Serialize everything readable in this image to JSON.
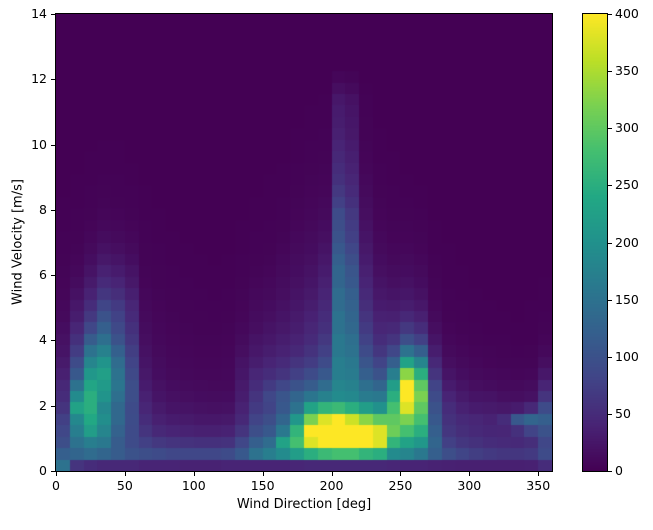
{
  "chart_data": {
    "type": "heatmap",
    "title": "",
    "xlabel": "Wind Direction [deg]",
    "ylabel": "Wind Velocity [m/s]",
    "x_range": [
      0,
      360
    ],
    "y_range": [
      0,
      14
    ],
    "x_ticks": [
      0,
      50,
      100,
      150,
      200,
      250,
      300,
      350
    ],
    "y_ticks": [
      0,
      2,
      4,
      6,
      8,
      10,
      12,
      14
    ],
    "x_bin_deg": 10,
    "y_bin_ms": 0.35,
    "grid": false,
    "colormap": "viridis",
    "colormap_stops": [
      "#440154",
      "#482475",
      "#414487",
      "#355f8d",
      "#2a788e",
      "#21918c",
      "#22a884",
      "#44bf70",
      "#7ad151",
      "#bddf26",
      "#fde725"
    ],
    "colorbar": {
      "min": 0,
      "max": 400,
      "ticks": [
        0,
        50,
        100,
        150,
        200,
        250,
        300,
        350,
        400
      ]
    },
    "values_rows_bottom_to_top": [
      [
        150,
        60,
        50,
        45,
        45,
        45,
        40,
        40,
        40,
        38,
        38,
        38,
        40,
        40,
        40,
        40,
        40,
        42,
        45,
        45,
        45,
        45,
        45,
        45,
        42,
        40,
        40,
        38,
        36,
        35,
        35,
        35,
        35,
        35,
        36,
        50
      ],
      [
        120,
        130,
        140,
        130,
        115,
        100,
        95,
        90,
        85,
        85,
        85,
        85,
        90,
        110,
        150,
        170,
        190,
        220,
        250,
        270,
        280,
        280,
        260,
        250,
        190,
        180,
        160,
        120,
        95,
        82,
        72,
        66,
        62,
        62,
        66,
        90
      ],
      [
        95,
        150,
        170,
        160,
        115,
        90,
        75,
        65,
        60,
        58,
        55,
        55,
        58,
        85,
        120,
        140,
        230,
        280,
        380,
        400,
        400,
        400,
        400,
        380,
        260,
        230,
        210,
        130,
        75,
        62,
        56,
        50,
        48,
        46,
        52,
        85
      ],
      [
        85,
        170,
        220,
        180,
        125,
        90,
        60,
        45,
        40,
        38,
        35,
        35,
        38,
        60,
        95,
        110,
        160,
        260,
        400,
        400,
        400,
        400,
        400,
        380,
        310,
        280,
        250,
        120,
        62,
        52,
        46,
        43,
        42,
        55,
        80,
        100
      ],
      [
        75,
        185,
        240,
        195,
        135,
        92,
        50,
        35,
        30,
        28,
        25,
        25,
        27,
        45,
        80,
        95,
        130,
        210,
        320,
        380,
        400,
        370,
        330,
        300,
        300,
        320,
        280,
        110,
        56,
        46,
        42,
        38,
        50,
        110,
        130,
        120
      ],
      [
        60,
        230,
        250,
        185,
        135,
        90,
        42,
        28,
        22,
        20,
        18,
        17,
        18,
        38,
        68,
        80,
        110,
        150,
        230,
        260,
        270,
        250,
        220,
        200,
        280,
        380,
        300,
        100,
        50,
        36,
        30,
        28,
        26,
        30,
        45,
        90
      ],
      [
        50,
        190,
        250,
        205,
        145,
        95,
        36,
        22,
        17,
        15,
        13,
        12,
        13,
        32,
        60,
        85,
        105,
        130,
        155,
        175,
        190,
        185,
        165,
        160,
        250,
        400,
        320,
        90,
        40,
        28,
        22,
        20,
        16,
        15,
        18,
        60
      ],
      [
        45,
        150,
        235,
        215,
        155,
        95,
        30,
        18,
        13,
        11,
        10,
        9,
        9,
        28,
        50,
        68,
        85,
        100,
        115,
        140,
        180,
        175,
        145,
        130,
        220,
        400,
        300,
        80,
        30,
        20,
        15,
        12,
        10,
        10,
        12,
        40
      ],
      [
        35,
        110,
        210,
        225,
        150,
        88,
        26,
        14,
        10,
        8,
        7,
        7,
        8,
        24,
        42,
        50,
        60,
        75,
        90,
        110,
        170,
        165,
        120,
        100,
        170,
        330,
        250,
        60,
        22,
        14,
        10,
        8,
        7,
        6,
        7,
        25
      ],
      [
        28,
        90,
        180,
        205,
        140,
        80,
        22,
        12,
        8,
        7,
        6,
        6,
        7,
        20,
        32,
        40,
        48,
        60,
        70,
        90,
        170,
        160,
        105,
        80,
        120,
        230,
        180,
        45,
        15,
        10,
        7,
        5,
        4,
        4,
        4,
        15
      ],
      [
        22,
        70,
        150,
        175,
        122,
        72,
        18,
        10,
        7,
        6,
        5,
        5,
        6,
        15,
        25,
        32,
        38,
        45,
        58,
        75,
        160,
        150,
        90,
        62,
        85,
        150,
        120,
        32,
        10,
        7,
        5,
        4,
        3,
        2,
        3,
        8
      ],
      [
        18,
        55,
        115,
        145,
        100,
        62,
        15,
        8,
        6,
        5,
        4,
        4,
        5,
        11,
        20,
        25,
        32,
        38,
        48,
        65,
        160,
        145,
        78,
        50,
        60,
        95,
        75,
        22,
        7,
        5,
        3,
        2,
        2,
        1,
        1,
        5
      ],
      [
        14,
        42,
        85,
        120,
        88,
        55,
        12,
        7,
        5,
        4,
        3,
        3,
        4,
        8,
        15,
        20,
        26,
        32,
        42,
        55,
        150,
        135,
        68,
        42,
        45,
        65,
        50,
        15,
        5,
        3,
        2,
        1,
        1,
        1,
        1,
        3
      ],
      [
        10,
        32,
        65,
        100,
        78,
        48,
        10,
        6,
        4,
        3,
        3,
        2,
        3,
        6,
        12,
        16,
        22,
        28,
        37,
        50,
        150,
        130,
        60,
        36,
        35,
        45,
        35,
        10,
        3,
        2,
        1,
        1,
        1,
        0,
        1,
        2
      ],
      [
        8,
        25,
        50,
        82,
        68,
        42,
        8,
        5,
        3,
        3,
        2,
        2,
        2,
        5,
        10,
        13,
        18,
        24,
        32,
        45,
        140,
        125,
        52,
        30,
        28,
        32,
        25,
        7,
        2,
        2,
        1,
        1,
        0,
        0,
        1,
        1
      ],
      [
        6,
        18,
        38,
        62,
        52,
        34,
        7,
        4,
        3,
        2,
        2,
        1,
        2,
        4,
        8,
        10,
        15,
        20,
        27,
        40,
        140,
        120,
        46,
        25,
        22,
        24,
        18,
        5,
        2,
        1,
        1,
        0,
        0,
        0,
        0,
        1
      ],
      [
        5,
        12,
        28,
        48,
        40,
        26,
        5,
        3,
        2,
        2,
        1,
        1,
        1,
        3,
        6,
        8,
        12,
        17,
        23,
        35,
        130,
        110,
        40,
        20,
        16,
        18,
        13,
        4,
        1,
        1,
        0,
        0,
        0,
        0,
        0,
        1
      ],
      [
        4,
        8,
        20,
        36,
        30,
        20,
        4,
        3,
        2,
        1,
        1,
        1,
        1,
        2,
        4,
        6,
        10,
        14,
        19,
        30,
        130,
        105,
        35,
        16,
        12,
        13,
        10,
        3,
        1,
        1,
        0,
        0,
        0,
        0,
        0,
        0
      ],
      [
        3,
        6,
        14,
        26,
        22,
        14,
        3,
        2,
        1,
        1,
        1,
        0,
        1,
        2,
        3,
        4,
        8,
        12,
        16,
        25,
        120,
        95,
        30,
        13,
        9,
        10,
        7,
        2,
        1,
        0,
        0,
        0,
        0,
        0,
        0,
        0
      ],
      [
        2,
        4,
        10,
        18,
        15,
        10,
        3,
        2,
        1,
        1,
        0,
        0,
        0,
        1,
        2,
        3,
        6,
        10,
        13,
        20,
        110,
        85,
        26,
        10,
        7,
        7,
        5,
        1,
        1,
        0,
        0,
        0,
        0,
        0,
        0,
        0
      ],
      [
        2,
        3,
        7,
        12,
        10,
        7,
        2,
        1,
        1,
        0,
        0,
        0,
        0,
        1,
        2,
        2,
        4,
        8,
        11,
        16,
        100,
        75,
        22,
        8,
        5,
        5,
        4,
        1,
        0,
        0,
        0,
        0,
        0,
        0,
        0,
        0
      ],
      [
        1,
        2,
        5,
        8,
        7,
        5,
        2,
        1,
        0,
        0,
        0,
        0,
        0,
        1,
        1,
        2,
        3,
        6,
        9,
        13,
        95,
        70,
        18,
        6,
        4,
        4,
        3,
        1,
        0,
        0,
        0,
        0,
        0,
        0,
        0,
        0
      ],
      [
        1,
        2,
        3,
        6,
        5,
        3,
        1,
        1,
        0,
        0,
        0,
        0,
        0,
        0,
        1,
        1,
        2,
        5,
        7,
        10,
        90,
        65,
        15,
        5,
        3,
        3,
        2,
        0,
        0,
        0,
        0,
        0,
        0,
        0,
        0,
        0
      ],
      [
        1,
        1,
        2,
        4,
        3,
        2,
        1,
        0,
        0,
        0,
        0,
        0,
        0,
        0,
        1,
        1,
        2,
        4,
        6,
        8,
        75,
        55,
        12,
        4,
        2,
        2,
        1,
        0,
        0,
        0,
        0,
        0,
        0,
        0,
        0,
        0
      ],
      [
        0,
        1,
        2,
        3,
        2,
        2,
        1,
        0,
        0,
        0,
        0,
        0,
        0,
        0,
        0,
        1,
        1,
        3,
        5,
        6,
        65,
        48,
        10,
        3,
        2,
        1,
        1,
        0,
        0,
        0,
        0,
        0,
        0,
        0,
        0,
        0
      ],
      [
        0,
        1,
        1,
        2,
        2,
        1,
        0,
        0,
        0,
        0,
        0,
        0,
        0,
        0,
        0,
        1,
        1,
        2,
        4,
        5,
        55,
        42,
        8,
        2,
        1,
        1,
        0,
        0,
        0,
        0,
        0,
        0,
        0,
        0,
        0,
        0
      ],
      [
        0,
        0,
        1,
        1,
        1,
        1,
        0,
        0,
        0,
        0,
        0,
        0,
        0,
        0,
        0,
        0,
        1,
        2,
        3,
        4,
        50,
        38,
        6,
        2,
        1,
        0,
        0,
        0,
        0,
        0,
        0,
        0,
        0,
        0,
        0,
        0
      ],
      [
        0,
        0,
        1,
        1,
        1,
        0,
        0,
        0,
        0,
        0,
        0,
        0,
        0,
        0,
        0,
        0,
        0,
        1,
        2,
        3,
        45,
        34,
        5,
        1,
        1,
        0,
        0,
        0,
        0,
        0,
        0,
        0,
        0,
        0,
        0,
        0
      ],
      [
        0,
        0,
        0,
        1,
        1,
        0,
        0,
        0,
        0,
        0,
        0,
        0,
        0,
        0,
        0,
        0,
        0,
        1,
        2,
        2,
        40,
        30,
        4,
        1,
        0,
        0,
        0,
        0,
        0,
        0,
        0,
        0,
        0,
        0,
        0,
        0
      ],
      [
        0,
        0,
        0,
        0,
        0,
        0,
        0,
        0,
        0,
        0,
        0,
        0,
        0,
        0,
        0,
        0,
        0,
        1,
        1,
        2,
        35,
        26,
        3,
        1,
        0,
        0,
        0,
        0,
        0,
        0,
        0,
        0,
        0,
        0,
        0,
        0
      ],
      [
        0,
        0,
        0,
        0,
        0,
        0,
        0,
        0,
        0,
        0,
        0,
        0,
        0,
        0,
        0,
        0,
        0,
        0,
        1,
        1,
        32,
        24,
        3,
        0,
        0,
        0,
        0,
        0,
        0,
        0,
        0,
        0,
        0,
        0,
        0,
        0
      ],
      [
        0,
        0,
        0,
        0,
        0,
        0,
        0,
        0,
        0,
        0,
        0,
        0,
        0,
        0,
        0,
        0,
        0,
        0,
        1,
        1,
        30,
        22,
        2,
        0,
        0,
        0,
        0,
        0,
        0,
        0,
        0,
        0,
        0,
        0,
        0,
        0
      ],
      [
        0,
        0,
        0,
        0,
        0,
        0,
        0,
        0,
        0,
        0,
        0,
        0,
        0,
        0,
        0,
        0,
        0,
        0,
        0,
        1,
        25,
        18,
        2,
        0,
        0,
        0,
        0,
        0,
        0,
        0,
        0,
        0,
        0,
        0,
        0,
        0
      ],
      [
        0,
        0,
        0,
        0,
        0,
        0,
        0,
        0,
        0,
        0,
        0,
        0,
        0,
        0,
        0,
        0,
        0,
        0,
        0,
        0,
        15,
        10,
        1,
        0,
        0,
        0,
        0,
        0,
        0,
        0,
        0,
        0,
        0,
        0,
        0,
        0
      ],
      [
        0,
        0,
        0,
        0,
        0,
        0,
        0,
        0,
        0,
        0,
        0,
        0,
        0,
        0,
        0,
        0,
        0,
        0,
        0,
        0,
        6,
        4,
        0,
        0,
        0,
        0,
        0,
        0,
        0,
        0,
        0,
        0,
        0,
        0,
        0,
        0
      ],
      [
        0,
        0,
        0,
        0,
        0,
        0,
        0,
        0,
        0,
        0,
        0,
        0,
        0,
        0,
        0,
        0,
        0,
        0,
        0,
        0,
        0,
        0,
        0,
        0,
        0,
        0,
        0,
        0,
        0,
        0,
        0,
        0,
        0,
        0,
        0,
        0
      ],
      [
        0,
        0,
        0,
        0,
        0,
        0,
        0,
        0,
        0,
        0,
        0,
        0,
        0,
        0,
        0,
        0,
        0,
        0,
        0,
        0,
        0,
        0,
        0,
        0,
        0,
        0,
        0,
        0,
        0,
        0,
        0,
        0,
        0,
        0,
        0,
        0
      ],
      [
        0,
        0,
        0,
        0,
        0,
        0,
        0,
        0,
        0,
        0,
        0,
        0,
        0,
        0,
        0,
        0,
        0,
        0,
        0,
        0,
        0,
        0,
        0,
        0,
        0,
        0,
        0,
        0,
        0,
        0,
        0,
        0,
        0,
        0,
        0,
        0
      ],
      [
        0,
        0,
        0,
        0,
        0,
        0,
        0,
        0,
        0,
        0,
        0,
        0,
        0,
        0,
        0,
        0,
        0,
        0,
        0,
        0,
        0,
        0,
        0,
        0,
        0,
        0,
        0,
        0,
        0,
        0,
        0,
        0,
        0,
        0,
        0,
        0
      ],
      [
        0,
        0,
        0,
        0,
        0,
        0,
        0,
        0,
        0,
        0,
        0,
        0,
        0,
        0,
        0,
        0,
        0,
        0,
        0,
        0,
        0,
        0,
        0,
        0,
        0,
        0,
        0,
        0,
        0,
        0,
        0,
        0,
        0,
        0,
        0,
        0
      ]
    ]
  }
}
